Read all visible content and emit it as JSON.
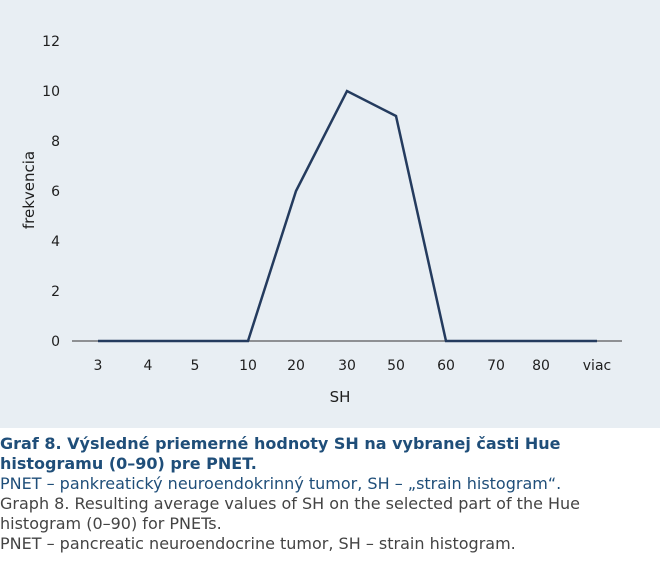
{
  "chart_data": {
    "type": "line",
    "categories": [
      "3",
      "4",
      "5",
      "10",
      "20",
      "30",
      "50",
      "60",
      "70",
      "80",
      "viac"
    ],
    "series": [
      {
        "values": [
          0,
          0,
          0,
          0,
          6,
          10,
          9,
          0,
          0,
          0,
          0
        ]
      }
    ],
    "xlabel": "SH",
    "ylabel": "frekvencia",
    "ylim": [
      0,
      12
    ],
    "yticks": [
      0,
      2,
      4,
      6,
      8,
      10,
      12
    ],
    "grid": false,
    "line_color": "#243b5e"
  },
  "caption": {
    "title": "Graf 8. Výsledné priemerné hodnoty SH na vybranej časti Hue histogramu (0–90) pre PNET.",
    "abbrev_sk": "PNET – pankreatický neuroendokrinný tumor, SH – „strain histogram“.",
    "title_en": "Graph 8. Resulting average values of SH on the selected part of the Hue histogram (0–90) for PNETs.",
    "abbrev_en": "PNET – pancreatic neuroendocrine tumor, SH – strain histogram."
  }
}
